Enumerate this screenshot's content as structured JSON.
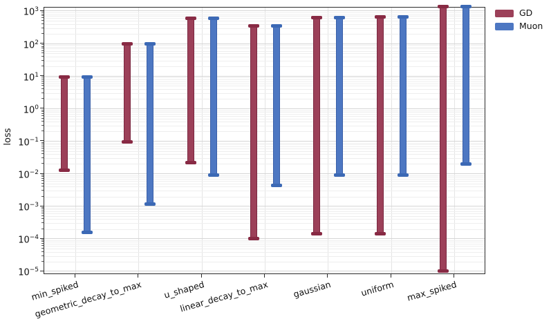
{
  "chart_data": {
    "type": "range-bar",
    "yscale": "log",
    "title": "",
    "xlabel": "",
    "ylabel": "loss",
    "grid": true,
    "legend_position": "upper-right-outside",
    "ylim": [
      7.8e-06,
      1280
    ],
    "y_tick_exponents": [
      3,
      2,
      1,
      0,
      -1,
      -2,
      -3,
      -4,
      -5
    ],
    "categories": [
      "min_spiked",
      "geometric_decay_to_max",
      "u_shaped",
      "linear_decay_to_max",
      "gaussian",
      "uniform",
      "max_spiked"
    ],
    "series": [
      {
        "name": "GD",
        "color": "#9c4059",
        "edge_color": "#7a2740",
        "cap_color": "#882a44",
        "ranges": [
          [
            0.013,
            9.5
          ],
          [
            0.095,
            100
          ],
          [
            0.022,
            600
          ],
          [
            0.0001,
            350
          ],
          [
            0.00014,
            620
          ],
          [
            0.00014,
            650
          ],
          [
            1e-05,
            1400
          ]
        ]
      },
      {
        "name": "Muon",
        "color": "#4d77c2",
        "edge_color": "#3a5fa8",
        "cap_color": "#3c69b5",
        "ranges": [
          [
            0.00016,
            9.5
          ],
          [
            0.0012,
            100
          ],
          [
            0.009,
            600
          ],
          [
            0.0044,
            350
          ],
          [
            0.009,
            620
          ],
          [
            0.009,
            650
          ],
          [
            0.02,
            1400
          ]
        ]
      }
    ]
  }
}
